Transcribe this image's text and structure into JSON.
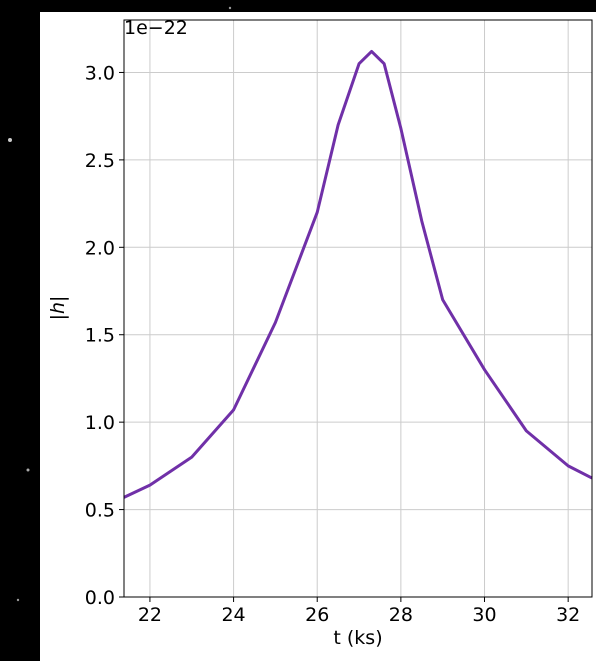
{
  "chart_data": {
    "type": "line",
    "x_label": "t (ks)",
    "y_label": "|h|",
    "offset_label": "1e−22",
    "x": [
      21.38,
      22,
      23,
      24,
      25,
      26,
      26.5,
      27,
      27.3,
      27.6,
      28,
      28.5,
      29,
      30,
      31,
      32,
      32.57
    ],
    "series": [
      {
        "name": "|h|",
        "color": "#7030a8",
        "values": [
          0.57,
          0.64,
          0.8,
          1.07,
          1.57,
          2.2,
          2.7,
          3.05,
          3.12,
          3.05,
          2.68,
          2.15,
          1.7,
          1.3,
          0.95,
          0.75,
          0.68
        ]
      }
    ],
    "xlim": [
      21.38,
      32.57
    ],
    "xticks": [
      22,
      24,
      26,
      28,
      30,
      32
    ],
    "ylim": [
      0,
      3.3
    ],
    "yticks": [
      {
        "value": 0,
        "label": "0.0"
      },
      {
        "value": 0.5,
        "label": "0.5"
      },
      {
        "value": 1,
        "label": "1.0"
      },
      {
        "value": 1.5,
        "label": "1.5"
      },
      {
        "value": 2,
        "label": "2.0"
      },
      {
        "value": 2.5,
        "label": "2.5"
      },
      {
        "value": 3,
        "label": "3.0"
      }
    ],
    "grid": true
  }
}
